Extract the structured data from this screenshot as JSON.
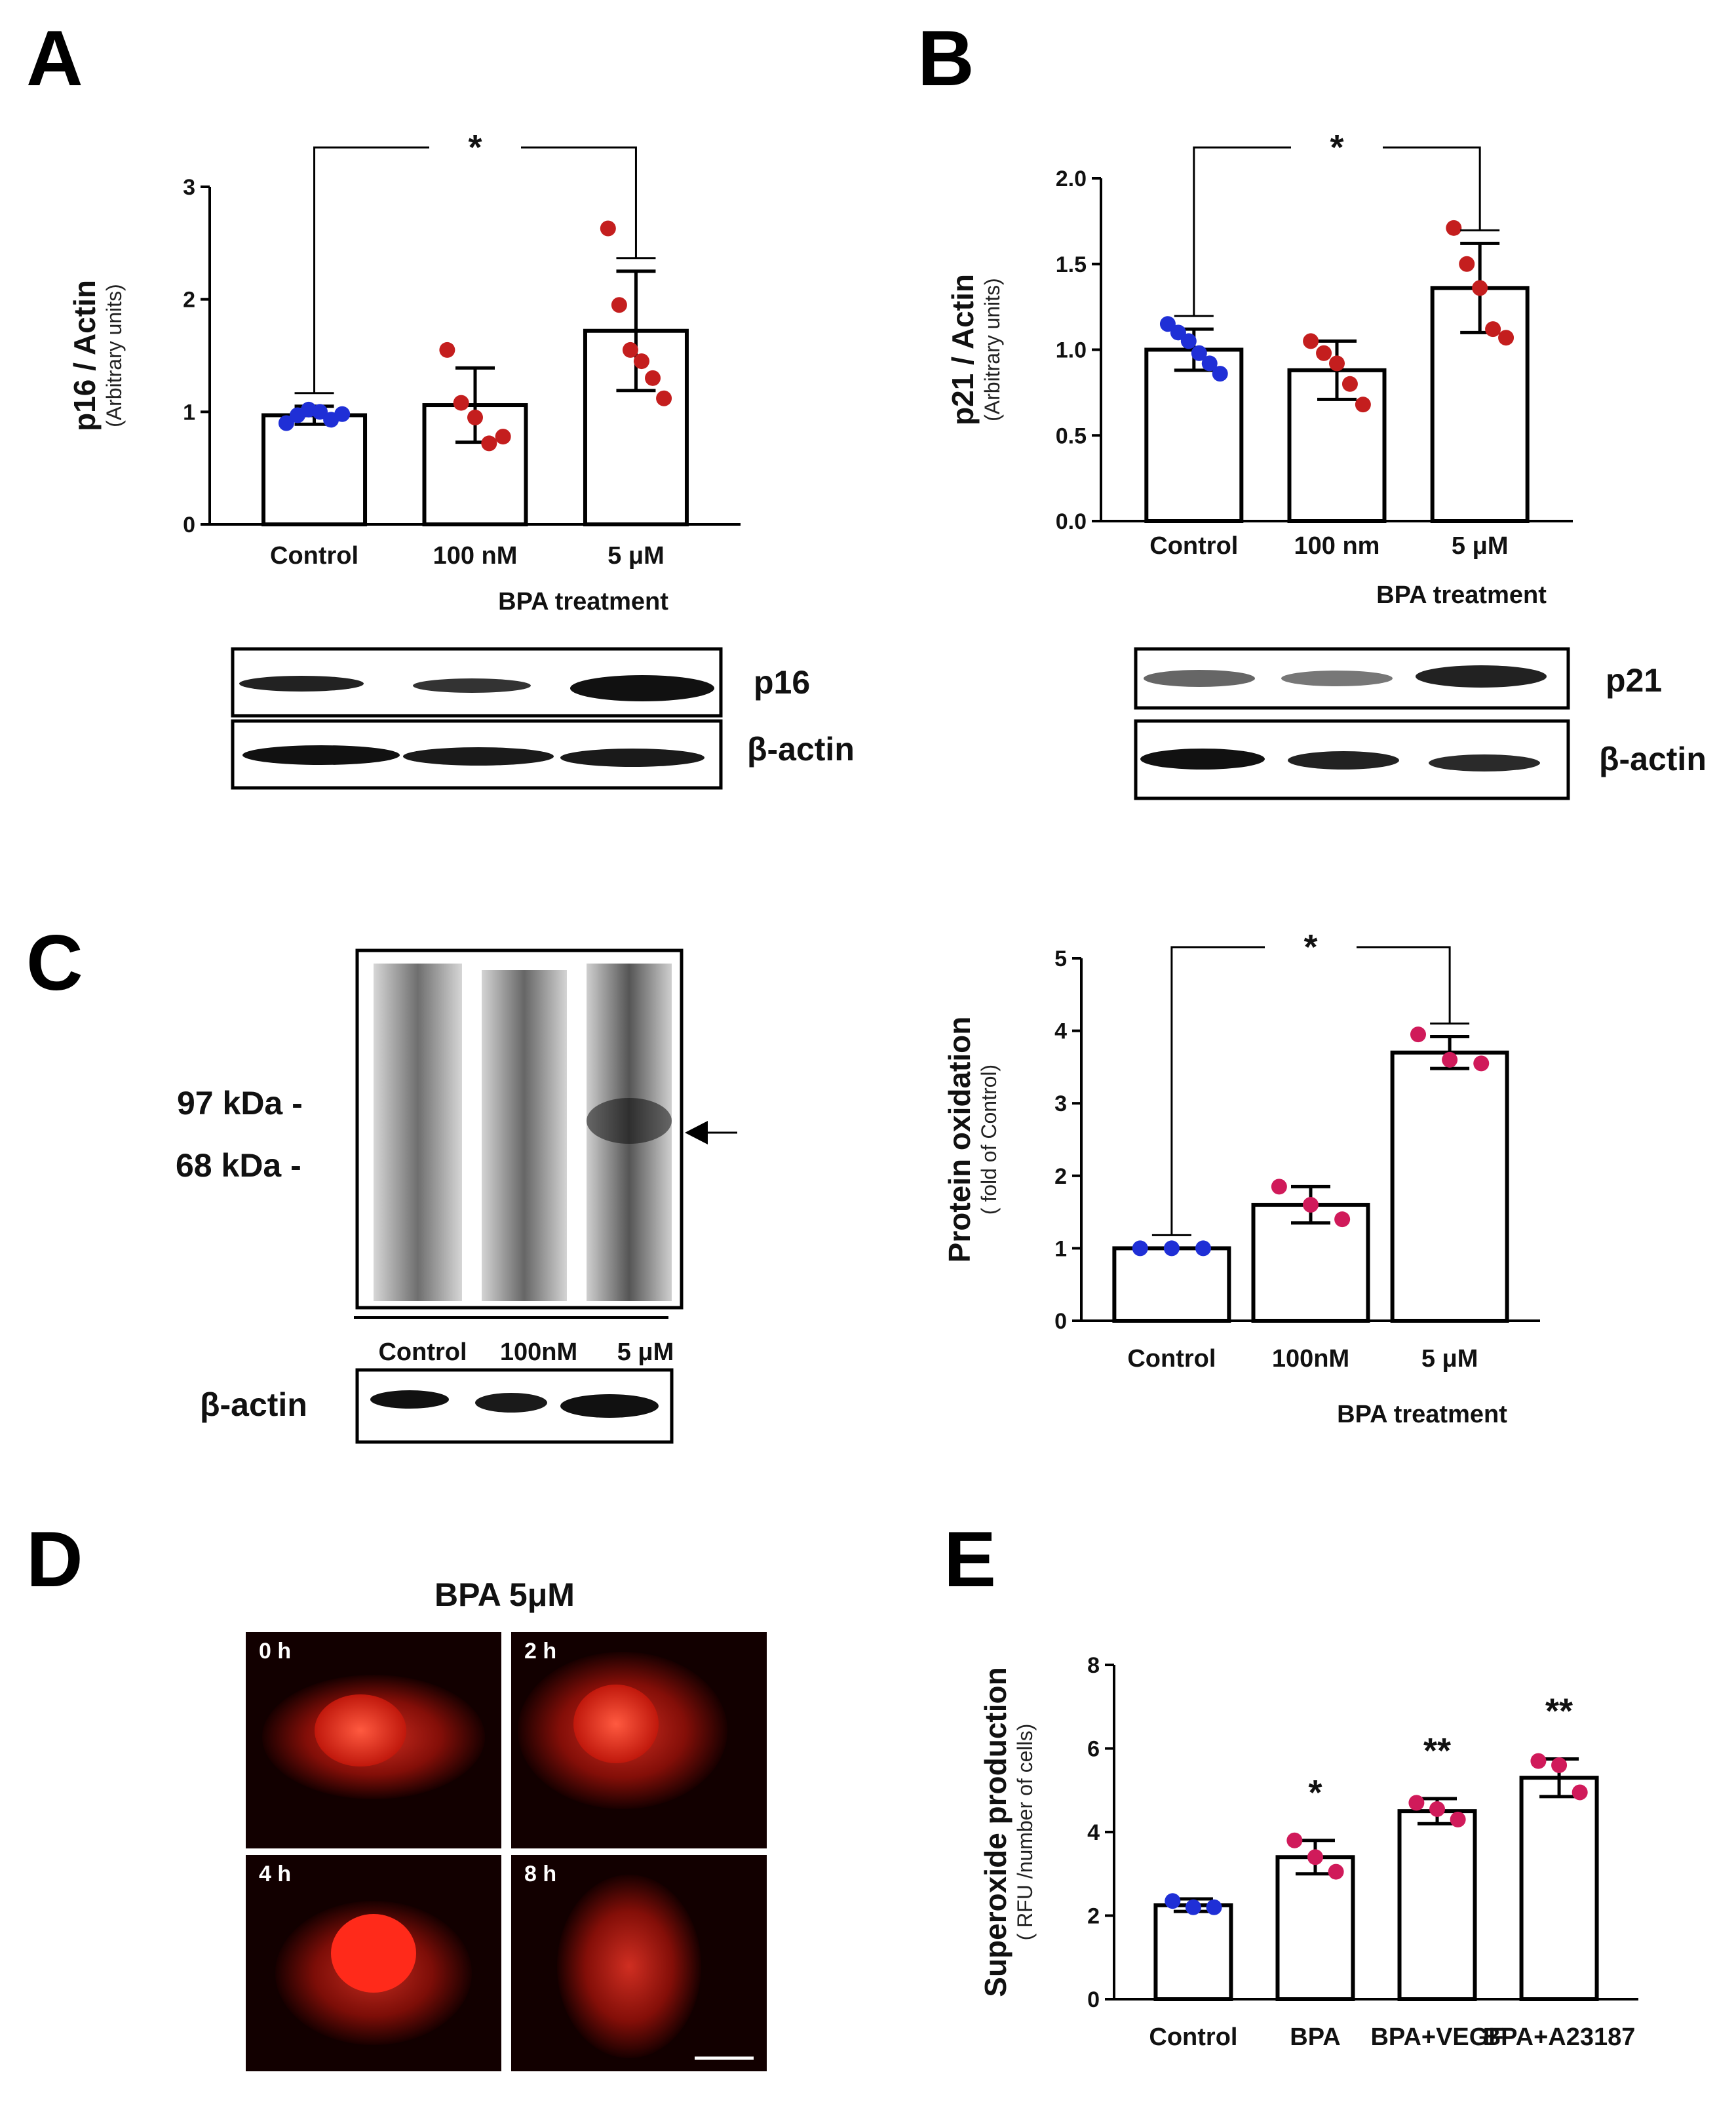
{
  "panels": {
    "A": "A",
    "B": "B",
    "C": "C",
    "D": "D",
    "E": "E"
  },
  "colors": {
    "blue": "#1f2fd6",
    "red": "#c41e1e",
    "magenta": "#d01a5a"
  },
  "chart_data": [
    {
      "id": "A",
      "type": "bar",
      "categories": [
        "Control",
        "100 nM",
        "5 μM"
      ],
      "values": [
        0.97,
        1.06,
        1.72
      ],
      "errors": [
        0.08,
        0.33,
        0.53
      ],
      "points": [
        [
          0.9,
          0.97,
          1.02,
          1.0,
          0.93,
          0.98
        ],
        [
          1.55,
          1.08,
          0.95,
          0.72,
          0.78
        ],
        [
          2.63,
          1.95,
          1.55,
          1.45,
          1.3,
          1.12
        ]
      ],
      "point_colors": [
        "blue",
        "red",
        "red"
      ],
      "ylim": [
        0,
        3
      ],
      "yticks": [
        0,
        1,
        2,
        3
      ],
      "ylabel": "p16 / Actin",
      "ylabel_sub": "(Arbitrary units)",
      "xlabel": "BPA  treatment",
      "significance": "*"
    },
    {
      "id": "B",
      "type": "bar",
      "categories": [
        "Control",
        "100 nm",
        "5 μM"
      ],
      "values": [
        1.0,
        0.88,
        1.36
      ],
      "errors": [
        0.12,
        0.17,
        0.26
      ],
      "points": [
        [
          1.15,
          1.1,
          1.05,
          0.98,
          0.92,
          0.86
        ],
        [
          1.05,
          0.98,
          0.92,
          0.8,
          0.68
        ],
        [
          1.71,
          1.5,
          1.36,
          1.12,
          1.07
        ]
      ],
      "point_colors": [
        "blue",
        "red",
        "red"
      ],
      "ylim": [
        0,
        2
      ],
      "yticks": [
        "0.0",
        "0.5",
        "1.0",
        "1.5",
        "2.0"
      ],
      "ylabel": "p21 / Actin",
      "ylabel_sub": "(Arbitrary units)",
      "xlabel": "BPA  treatment",
      "significance": "*"
    },
    {
      "id": "C",
      "type": "bar",
      "categories": [
        "Control",
        "100nM",
        "5 μM"
      ],
      "values": [
        1.0,
        1.6,
        3.7
      ],
      "errors": [
        0.0,
        0.25,
        0.22
      ],
      "points": [
        [
          1.0,
          1.0,
          1.0
        ],
        [
          1.85,
          1.6,
          1.4
        ],
        [
          3.95,
          3.6,
          3.55
        ]
      ],
      "point_colors": [
        "blue",
        "magenta",
        "magenta"
      ],
      "ylim": [
        0,
        5
      ],
      "yticks": [
        0,
        1,
        2,
        3,
        4,
        5
      ],
      "ylabel": "Protein oxidation",
      "ylabel_sub": "( fold of Control)",
      "xlabel": "BPA treatment",
      "significance": "*"
    },
    {
      "id": "E",
      "type": "bar",
      "categories": [
        "Control",
        "BPA",
        "BPA+VEGF",
        "BPA+A23187"
      ],
      "values": [
        2.25,
        3.4,
        4.5,
        5.3
      ],
      "errors": [
        0.15,
        0.4,
        0.3,
        0.45
      ],
      "points": [
        [
          2.35,
          2.2,
          2.2
        ],
        [
          3.8,
          3.4,
          3.05
        ],
        [
          4.7,
          4.55,
          4.3
        ],
        [
          5.7,
          5.6,
          4.95
        ]
      ],
      "point_colors": [
        "blue",
        "magenta",
        "magenta",
        "magenta"
      ],
      "ylim": [
        0,
        8
      ],
      "yticks": [
        0,
        2,
        4,
        6,
        8
      ],
      "ylabel": "Superoxide production",
      "ylabel_sub": "( RFU /number of cells)",
      "bar_labels": [
        "",
        "*",
        "**",
        "**"
      ]
    }
  ],
  "blots": {
    "A": {
      "labels": [
        "p16",
        "β-actin"
      ]
    },
    "B": {
      "labels": [
        "p21",
        "β-actin"
      ]
    },
    "C": {
      "markers": [
        "97 kDa -",
        "68 kDa -"
      ],
      "lanes": [
        "Control",
        "100nM",
        "5 μM"
      ],
      "actin": "β-actin"
    }
  },
  "microscopy": {
    "title": "BPA  5μM",
    "times": [
      "0 h",
      "2 h",
      "4 h",
      "8 h"
    ]
  }
}
